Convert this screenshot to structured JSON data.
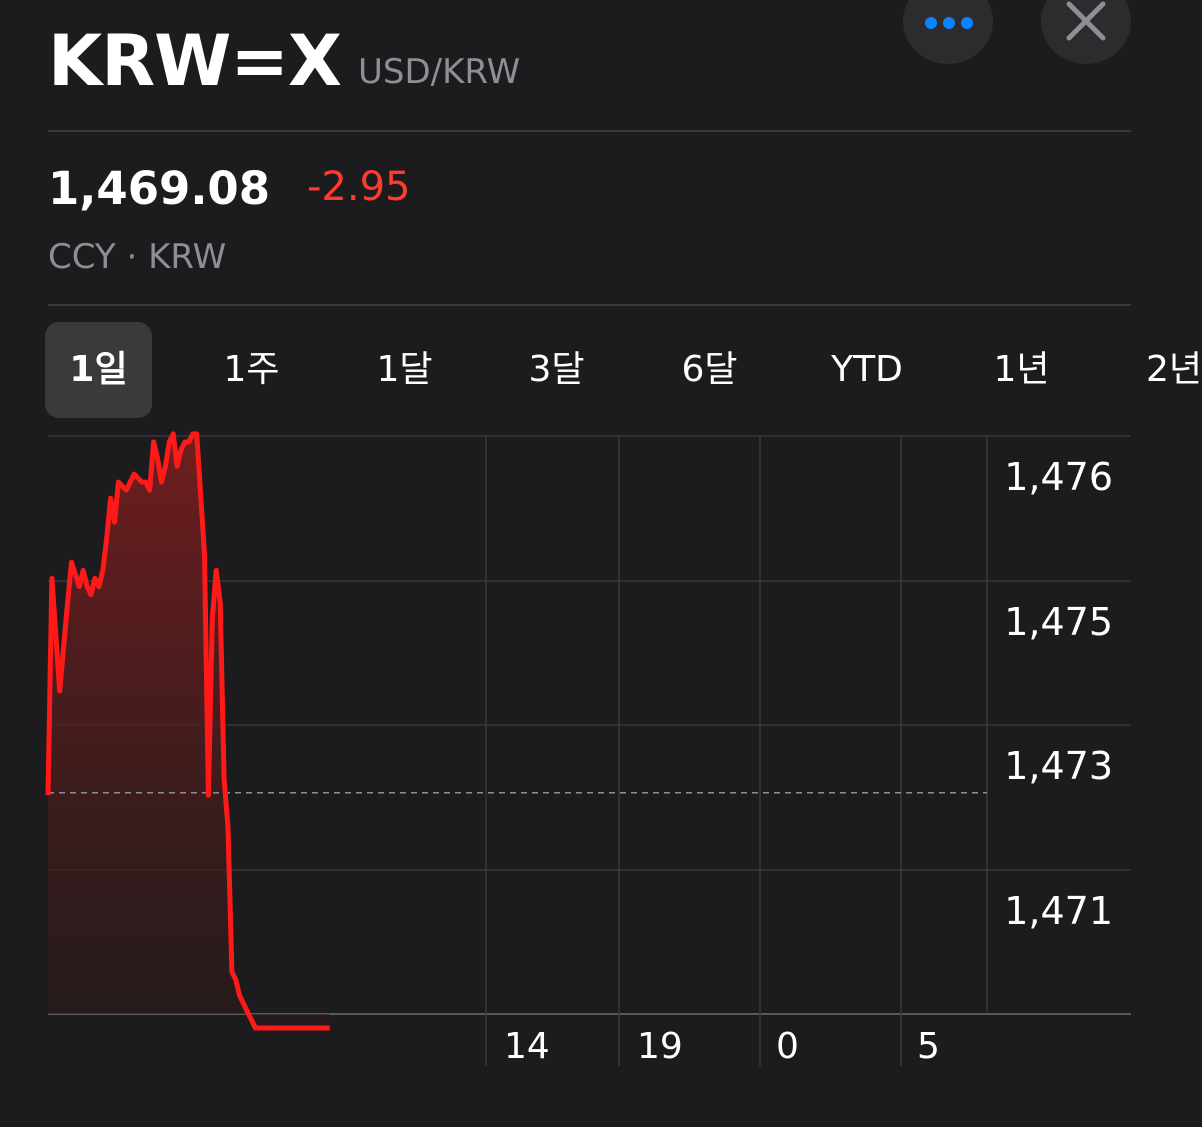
{
  "header": {
    "symbol": "KRW=X",
    "pair": "USD/KRW",
    "more_icon": "ellipsis-icon",
    "close_icon": "close-icon"
  },
  "quote": {
    "price": "1,469.08",
    "change": "-2.95",
    "meta": "CCY · KRW"
  },
  "ranges": [
    "1일",
    "1주",
    "1달",
    "3달",
    "6달",
    "YTD",
    "1년",
    "2년"
  ],
  "selected_range": "1일",
  "colors": {
    "background": "#1c1c1e",
    "line": "#ff1a1a",
    "negative": "#ff3b30",
    "accent": "#0a84ff",
    "grid": "#38383a"
  },
  "chart_data": {
    "type": "area",
    "y_tick_labels": [
      "1,476",
      "1,475",
      "1,473",
      "1,471"
    ],
    "x_tick_labels": [
      "14",
      "19",
      "0",
      "5"
    ],
    "previous_close": 1472.03,
    "y_range": [
      1469.1,
      1476.3
    ],
    "x_range": [
      0,
      24
    ],
    "x": [
      0.0,
      0.1,
      0.3,
      0.5,
      0.6,
      0.8,
      0.9,
      1.0,
      1.1,
      1.2,
      1.3,
      1.4,
      1.5,
      1.6,
      1.7,
      1.8,
      2.0,
      2.2,
      2.4,
      2.5,
      2.6,
      2.7,
      2.8,
      2.9,
      3.0,
      3.1,
      3.2,
      3.3,
      3.4,
      3.5,
      3.6,
      3.7,
      3.8,
      4.0,
      4.1,
      4.2,
      4.3,
      4.4,
      4.5,
      4.6,
      4.7,
      4.8,
      4.9,
      5.0,
      5.1,
      5.2,
      5.3,
      5.4,
      5.5,
      5.6,
      5.8,
      5.9,
      6.0,
      6.1,
      6.2,
      6.4,
      6.5,
      6.6,
      6.7,
      6.8,
      6.9,
      7.1,
      7.2
    ],
    "y": [
      1472.0,
      1474.7,
      1473.3,
      1474.4,
      1474.9,
      1474.6,
      1474.8,
      1474.6,
      1474.5,
      1474.7,
      1474.6,
      1474.8,
      1475.2,
      1475.7,
      1475.4,
      1475.9,
      1475.8,
      1476.0,
      1475.9,
      1475.9,
      1475.8,
      1476.4,
      1476.2,
      1475.9,
      1476.1,
      1476.4,
      1476.5,
      1476.1,
      1476.3,
      1476.4,
      1476.4,
      1476.5,
      1476.5,
      1475.0,
      1472.0,
      1474.2,
      1474.8,
      1474.4,
      1472.2,
      1471.6,
      1469.8,
      1469.7,
      1469.5,
      1469.4,
      1469.3,
      1469.2,
      1469.1,
      1469.1,
      1469.1,
      1469.1,
      1469.1,
      1469.1,
      1469.1,
      1469.1,
      1469.1,
      1469.1,
      1469.1,
      1469.1,
      1469.1,
      1469.1,
      1469.1,
      1469.1,
      1469.1
    ]
  }
}
